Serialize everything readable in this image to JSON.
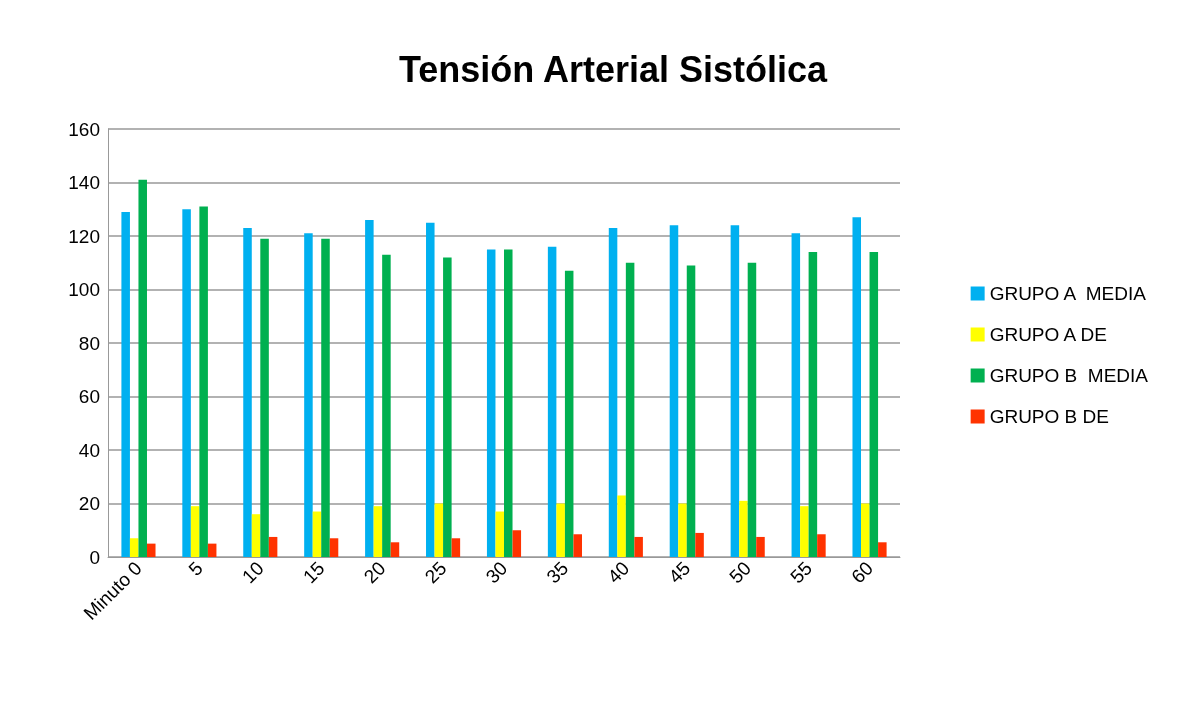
{
  "chart_data": {
    "type": "bar",
    "title": "Tensión Arterial Sistólica",
    "categories": [
      "Minuto 0",
      "5",
      "10",
      "15",
      "20",
      "25",
      "30",
      "35",
      "40",
      "45",
      "50",
      "55",
      "60"
    ],
    "series": [
      {
        "name": "GRUPO A  MEDIA",
        "color": "#00b0f0",
        "values": [
          129,
          130,
          123,
          121,
          126,
          125,
          115,
          116,
          123,
          124,
          124,
          121,
          127
        ]
      },
      {
        "name": "GRUPO A DE",
        "color": "#ffff00",
        "values": [
          7,
          19,
          16,
          17,
          19,
          20,
          17,
          20,
          23,
          20,
          21,
          19,
          20
        ]
      },
      {
        "name": "GRUPO B  MEDIA",
        "color": "#00b050",
        "values": [
          141,
          131,
          119,
          119,
          113,
          112,
          115,
          107,
          110,
          109,
          110,
          114,
          114
        ]
      },
      {
        "name": "GRUPO B DE",
        "color": "#ff3300",
        "values": [
          5,
          5,
          7.5,
          7,
          5.5,
          7,
          10,
          8.5,
          7.5,
          9,
          7.5,
          8.5,
          5.5
        ]
      }
    ],
    "ylim": [
      0,
      160
    ],
    "yticks": [
      0,
      20,
      40,
      60,
      80,
      100,
      120,
      140,
      160
    ],
    "grid": "y",
    "legend": "right"
  }
}
